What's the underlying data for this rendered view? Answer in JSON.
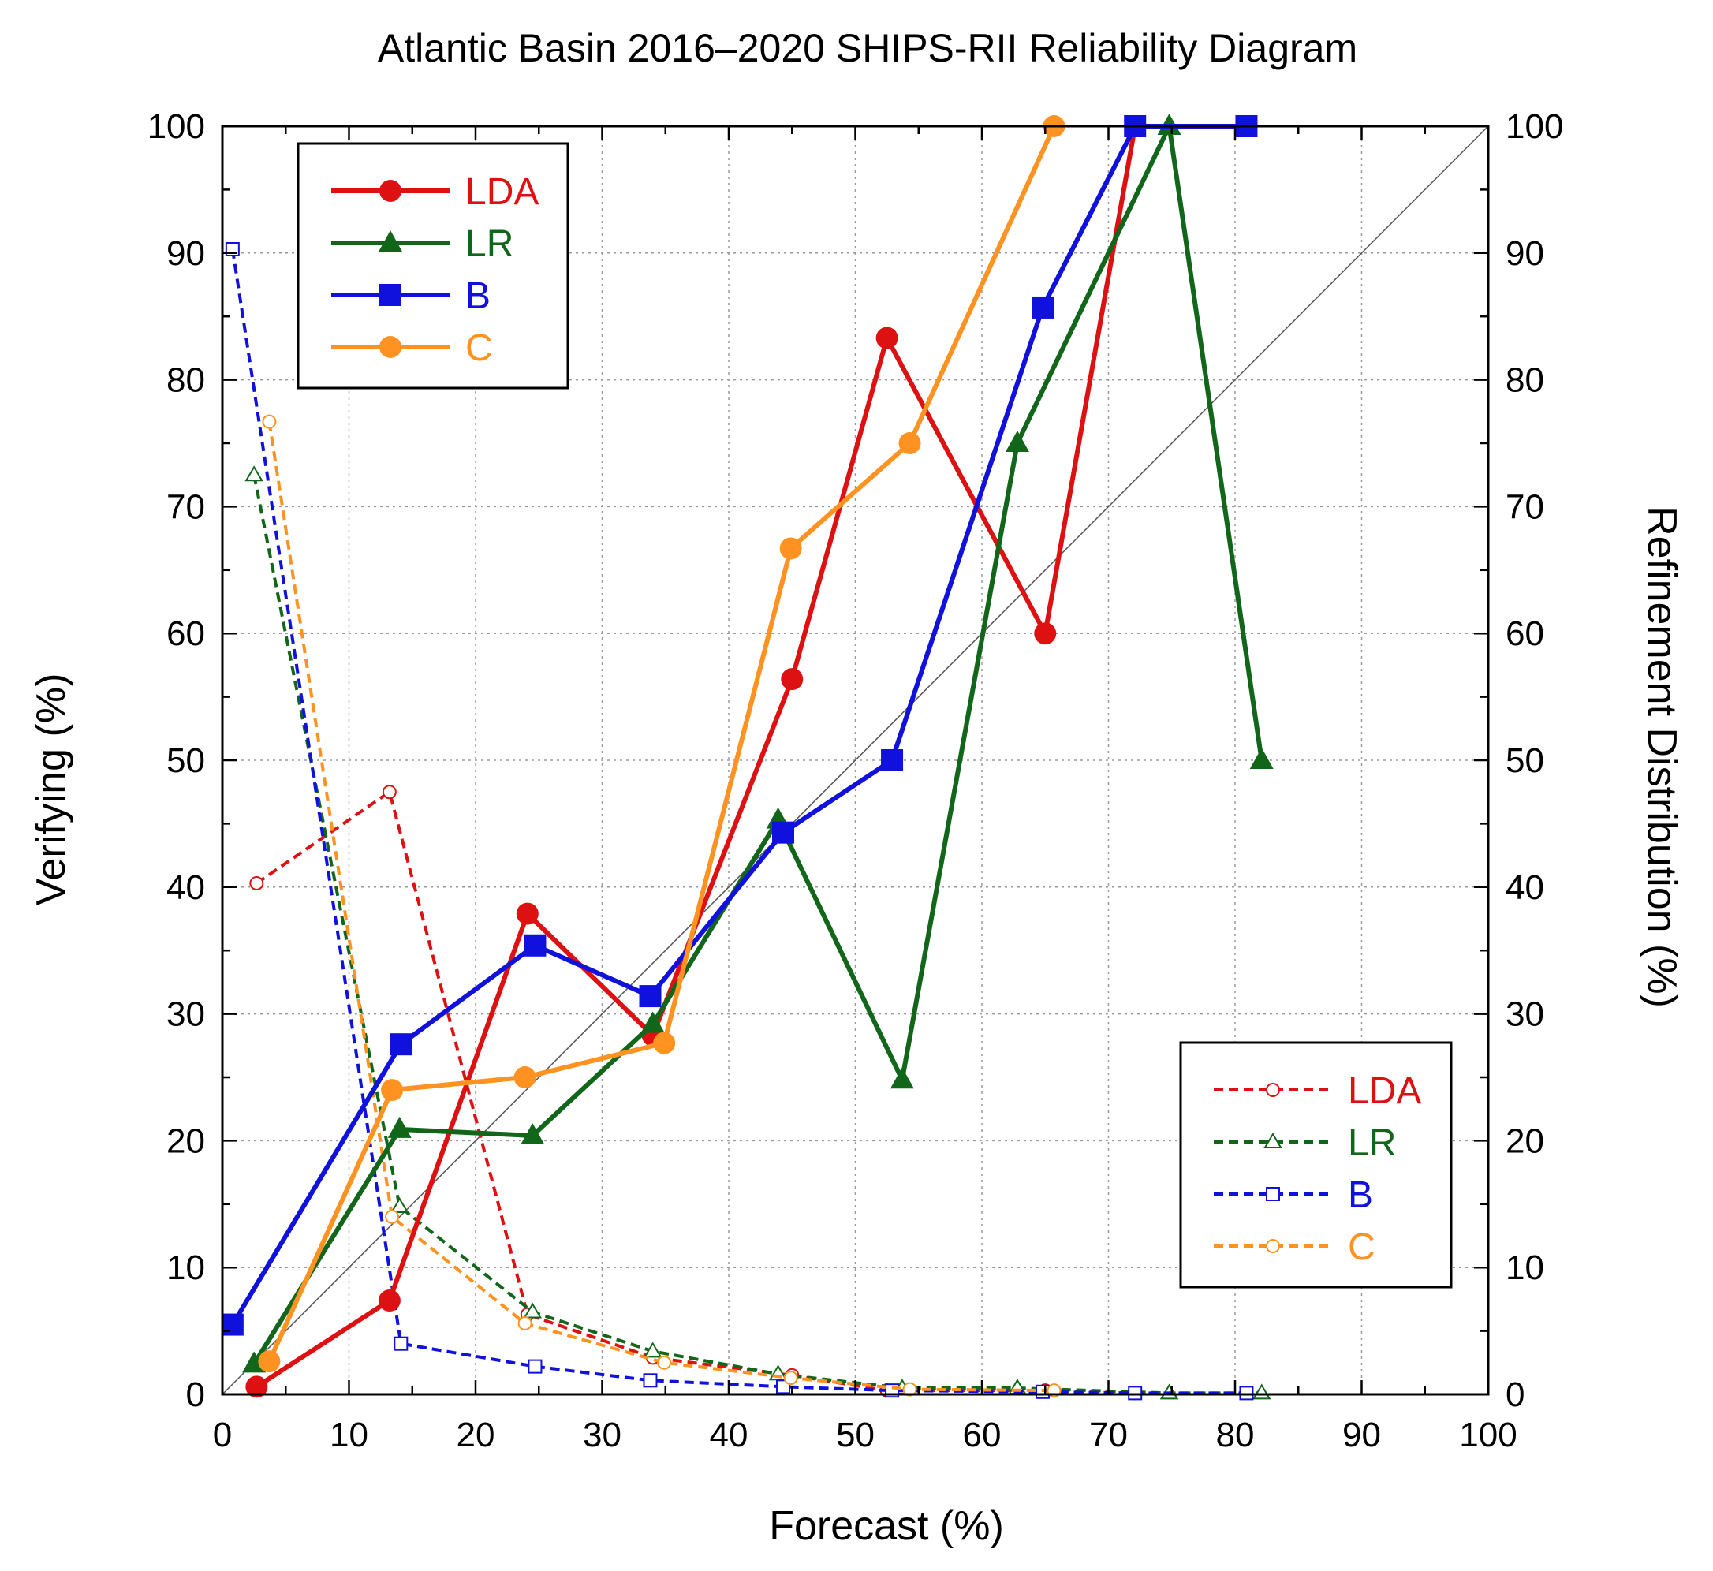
{
  "chart_data": {
    "type": "line",
    "title": "Atlantic Basin 2016–2020 SHIPS-RII Reliability Diagram",
    "xlabel": "Forecast (%)",
    "ylabel": "Verifying (%)",
    "y2label": "Refinement Distribution (%)",
    "xlim": [
      0,
      100
    ],
    "ylim": [
      0,
      100
    ],
    "y2lim": [
      0,
      100
    ],
    "x_ticks": [
      "0",
      "10",
      "20",
      "30",
      "40",
      "50",
      "60",
      "70",
      "80",
      "90",
      "100"
    ],
    "y_ticks": [
      "0",
      "10",
      "20",
      "30",
      "40",
      "50",
      "60",
      "70",
      "80",
      "90",
      "100"
    ],
    "y2_ticks": [
      "0",
      "10",
      "20",
      "30",
      "40",
      "50",
      "60",
      "70",
      "80",
      "90",
      "100"
    ],
    "grid": true,
    "diagonal_reference": true,
    "reliability_series": [
      {
        "name": "LDA",
        "color": "#dd1111",
        "marker": "circle",
        "x": [
          2.7,
          13.2,
          24.1,
          34.0,
          45.0,
          52.5,
          65.0,
          72.1
        ],
        "y": [
          0.6,
          7.4,
          37.9,
          28.3,
          56.4,
          83.3,
          60.0,
          100
        ]
      },
      {
        "name": "LR",
        "color": "#11661a",
        "marker": "triangle",
        "x": [
          2.5,
          14.0,
          24.5,
          34.0,
          43.9,
          53.7,
          62.8,
          74.8,
          82.1
        ],
        "y": [
          2.4,
          20.9,
          20.4,
          29.2,
          45.3,
          24.8,
          75.0,
          100,
          50.0
        ]
      },
      {
        "name": "B",
        "color": "#1111dd",
        "marker": "square",
        "x": [
          0.8,
          14.1,
          24.7,
          33.8,
          44.3,
          52.9,
          64.8,
          72.1,
          80.9
        ],
        "y": [
          5.5,
          27.6,
          35.4,
          31.4,
          44.3,
          50.0,
          85.7,
          100,
          100
        ]
      },
      {
        "name": "C",
        "color": "#ff9220",
        "marker": "circle",
        "x": [
          3.7,
          13.4,
          23.9,
          34.9,
          44.9,
          54.3,
          65.7
        ],
        "y": [
          2.6,
          24.0,
          25.0,
          27.7,
          66.7,
          75.0,
          100
        ]
      }
    ],
    "refinement_series": [
      {
        "name": "LDA",
        "color": "#dd1111",
        "marker": "open-circle",
        "x": [
          2.7,
          13.2,
          24.1,
          34.0,
          45.0,
          52.5,
          65.0,
          72.1
        ],
        "y": [
          40.3,
          47.5,
          6.3,
          2.9,
          1.5,
          0.3,
          0.3,
          0.1
        ]
      },
      {
        "name": "LR",
        "color": "#11661a",
        "marker": "open-triangle",
        "x": [
          2.5,
          14.0,
          24.5,
          34.0,
          43.9,
          53.7,
          62.8,
          74.8,
          82.1
        ],
        "y": [
          72.5,
          14.8,
          6.5,
          3.4,
          1.6,
          0.5,
          0.5,
          0.1,
          0.1
        ]
      },
      {
        "name": "B",
        "color": "#1111dd",
        "marker": "open-square",
        "x": [
          0.8,
          14.1,
          24.7,
          33.8,
          44.3,
          52.9,
          64.8,
          72.1,
          80.9
        ],
        "y": [
          90.3,
          4.0,
          2.2,
          1.1,
          0.6,
          0.3,
          0.2,
          0.1,
          0.1
        ]
      },
      {
        "name": "C",
        "color": "#ff9220",
        "marker": "open-circle",
        "x": [
          3.7,
          13.4,
          23.9,
          34.9,
          44.9,
          54.3,
          65.7
        ],
        "y": [
          76.7,
          14.0,
          5.6,
          2.5,
          1.3,
          0.4,
          0.3
        ]
      }
    ],
    "legend_reliability": {
      "position": "top-left",
      "entries": [
        "LDA",
        "LR",
        "B",
        "C"
      ]
    },
    "legend_refinement": {
      "position": "bottom-right",
      "entries": [
        "LDA",
        "LR",
        "B",
        "C"
      ]
    }
  }
}
